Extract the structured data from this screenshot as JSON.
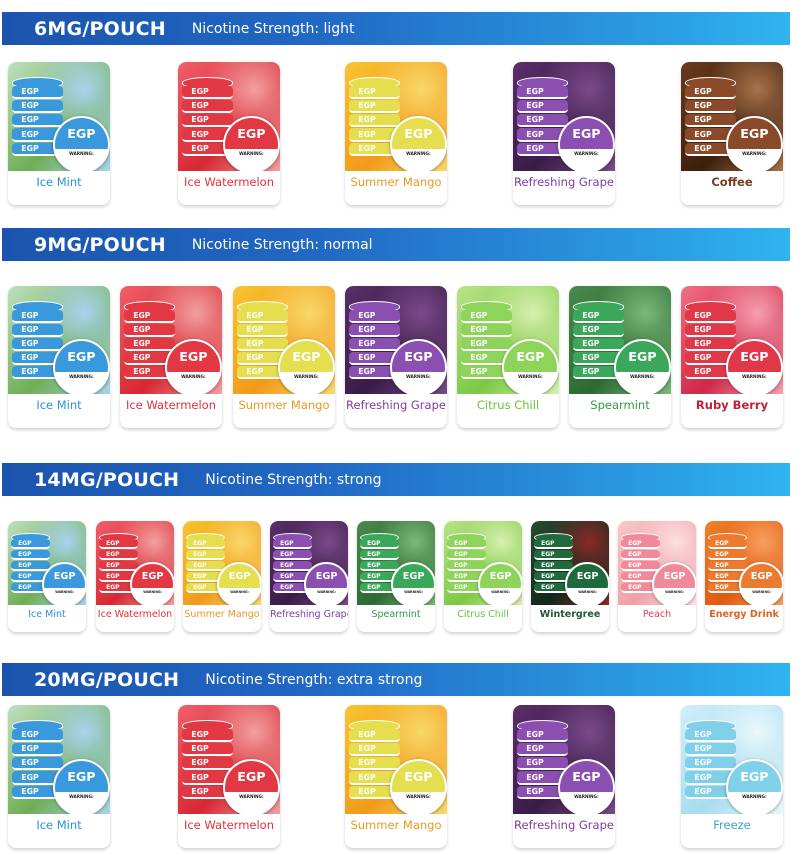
{
  "brand": "EGP",
  "warning_label": "WARNING:",
  "sections": [
    {
      "mg": "6MG/POUCH",
      "strength": "Nicotine Strength:  light",
      "products": [
        {
          "label": "Ice Mint",
          "color": "#2d8fd5",
          "tin": "#3a98dc",
          "bg": [
            "#bfe0c0",
            "#6fae55",
            "#a9d3ef"
          ]
        },
        {
          "label": "Ice Watermelon",
          "color": "#e0303a",
          "tin": "#e13843",
          "bg": [
            "#f0606a",
            "#d72833",
            "#f2a0a0"
          ]
        },
        {
          "label": "Summer Mango",
          "color": "#e89a20",
          "tin": "#e5de4e",
          "bg": [
            "#f7c430",
            "#f29a1a",
            "#f9d86a"
          ]
        },
        {
          "label": "Refreshing Grape",
          "color": "#7a3ea0",
          "tin": "#8a4fb0",
          "bg": [
            "#5a2e6a",
            "#3a1c48",
            "#7a4a8a"
          ]
        },
        {
          "label": "Coffee",
          "color": "#7a3b1c",
          "tin": "#8a4a2a",
          "bg": [
            "#6a3a1c",
            "#3c200c",
            "#a9724a"
          ]
        }
      ]
    },
    {
      "mg": "9MG/POUCH",
      "strength": "Nicotine Strength:  normal",
      "products": [
        {
          "label": "Ice Mint",
          "color": "#2d8fd5",
          "tin": "#3a98dc",
          "bg": [
            "#bfe0c0",
            "#6fae55",
            "#a9d3ef"
          ]
        },
        {
          "label": "Ice Watermelon",
          "color": "#e0303a",
          "tin": "#e13843",
          "bg": [
            "#f0606a",
            "#d72833",
            "#f2a0a0"
          ]
        },
        {
          "label": "Summer Mango",
          "color": "#e89a20",
          "tin": "#e5de4e",
          "bg": [
            "#f7c430",
            "#f29a1a",
            "#f9d86a"
          ]
        },
        {
          "label": "Refreshing Grape",
          "color": "#7a3ea0",
          "tin": "#8a4fb0",
          "bg": [
            "#5a2e6a",
            "#3a1c48",
            "#7a4a8a"
          ]
        },
        {
          "label": "Citrus Chill",
          "color": "#6cc23a",
          "tin": "#8ed45a",
          "bg": [
            "#b9e48a",
            "#7cc843",
            "#d8f0b0"
          ]
        },
        {
          "label": "Spearmint",
          "color": "#2e9a4a",
          "tin": "#3aa75a",
          "bg": [
            "#4a8a4a",
            "#2c6a34",
            "#7ab87a"
          ]
        },
        {
          "label": "Ruby Berry",
          "color": "#c0203a",
          "tin": "#e03848",
          "bg": [
            "#f07080",
            "#d0284a",
            "#f4a0b0"
          ]
        }
      ]
    },
    {
      "mg": "14MG/POUCH",
      "strength": "Nicotine Strength:  strong",
      "products": [
        {
          "label": "Ice Mint",
          "color": "#2d8fd5",
          "tin": "#3a98dc",
          "bg": [
            "#bfe0c0",
            "#6fae55",
            "#a9d3ef"
          ]
        },
        {
          "label": "Ice Watermelon",
          "color": "#e0303a",
          "tin": "#e13843",
          "bg": [
            "#f0606a",
            "#d72833",
            "#f2a0a0"
          ]
        },
        {
          "label": "Summer Mango",
          "color": "#e89a20",
          "tin": "#e5de4e",
          "bg": [
            "#f7c430",
            "#f29a1a",
            "#f9d86a"
          ]
        },
        {
          "label": "Refreshing Grape",
          "color": "#7a3ea0",
          "tin": "#8a4fb0",
          "bg": [
            "#5a2e6a",
            "#3a1c48",
            "#7a4a8a"
          ]
        },
        {
          "label": "Spearmint",
          "color": "#2e9a4a",
          "tin": "#3aa75a",
          "bg": [
            "#4a8a4a",
            "#2c6a34",
            "#7ab87a"
          ]
        },
        {
          "label": "Citrus Chill",
          "color": "#6cc23a",
          "tin": "#8ed45a",
          "bg": [
            "#b9e48a",
            "#7cc843",
            "#d8f0b0"
          ]
        },
        {
          "label": "Wintergree",
          "color": "#1d5a34",
          "tin": "#1f6a3c",
          "bg": [
            "#2a4a30",
            "#12281a",
            "#8a2a2a"
          ]
        },
        {
          "label": "Peach",
          "color": "#e0405a",
          "tin": "#f08a9a",
          "bg": [
            "#f8c8c8",
            "#f0a0a8",
            "#fde0e0"
          ]
        },
        {
          "label": "Energy Drink",
          "color": "#e06020",
          "tin": "#ec7a30",
          "bg": [
            "#f0802a",
            "#e05a10",
            "#f8a060"
          ]
        }
      ]
    },
    {
      "mg": "20MG/POUCH",
      "strength": "Nicotine Strength:  extra strong",
      "products": [
        {
          "label": "Ice Mint",
          "color": "#2d8fd5",
          "tin": "#3a98dc",
          "bg": [
            "#bfe0c0",
            "#6fae55",
            "#a9d3ef"
          ]
        },
        {
          "label": "Ice Watermelon",
          "color": "#e0303a",
          "tin": "#e13843",
          "bg": [
            "#f0606a",
            "#d72833",
            "#f2a0a0"
          ]
        },
        {
          "label": "Summer Mango",
          "color": "#e89a20",
          "tin": "#e5de4e",
          "bg": [
            "#f7c430",
            "#f29a1a",
            "#f9d86a"
          ]
        },
        {
          "label": "Refreshing Grape",
          "color": "#7a3ea0",
          "tin": "#8a4fb0",
          "bg": [
            "#5a2e6a",
            "#3a1c48",
            "#7a4a8a"
          ]
        },
        {
          "label": "Freeze",
          "color": "#3aa0d0",
          "tin": "#7fd0e8",
          "bg": [
            "#d0eef8",
            "#a8dcef",
            "#eaf8fc"
          ]
        }
      ]
    }
  ]
}
